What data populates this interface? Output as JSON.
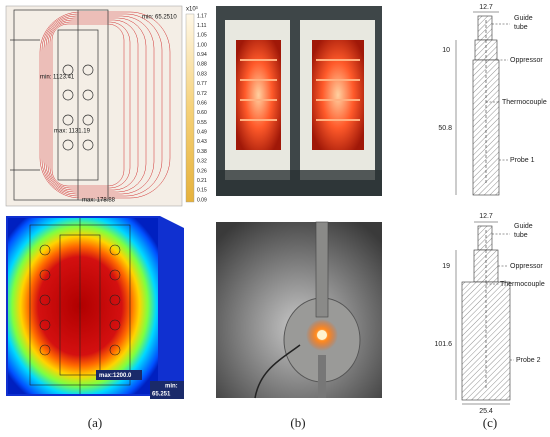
{
  "panel_a": {
    "top": {
      "min_outer": "min: 65.2510",
      "min_inner": "min: 1123.41",
      "max_inner": "max: 1131.19",
      "max_bottom": "max: 178.88",
      "colorbar_unit": "x10³",
      "colorbar_labels": [
        "1.17",
        "1.11",
        "1.05",
        "1.00",
        "0.94",
        "0.88",
        "0.83",
        "0.77",
        "0.72",
        "0.66",
        "0.60",
        "0.55",
        "0.49",
        "0.43",
        "0.38",
        "0.32",
        "0.26",
        "0.21",
        "0.15",
        "0.09"
      ]
    },
    "bottom": {
      "max": "max:1200.0",
      "min": "min:",
      "min_value": "65.251"
    },
    "caption": "(a)"
  },
  "panel_b": {
    "caption": "(b)"
  },
  "panel_c": {
    "probe1": {
      "width": "12.7",
      "guide": [
        "Guide",
        "tube"
      ],
      "oppressor_height": "10",
      "oppressor": "Oppressor",
      "thermocouple": "Thermocouple",
      "length": "50.8",
      "name": "Probe 1"
    },
    "probe2": {
      "width": "12.7",
      "guide": [
        "Guide",
        "tube"
      ],
      "oppressor_height": "19",
      "oppressor": "Oppressor",
      "thermocouple": "Thermocouple",
      "length": "101.6",
      "name": "Probe 2",
      "base_width": "25.4"
    },
    "caption": "(c)"
  }
}
